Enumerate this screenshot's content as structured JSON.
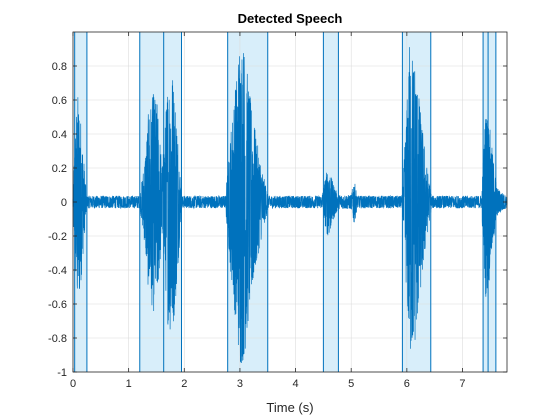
{
  "chart_data": {
    "type": "line",
    "title": "Detected Speech",
    "xlabel": "Time (s)",
    "ylabel": "",
    "xlim": [
      0,
      7.8
    ],
    "ylim": [
      -1,
      1
    ],
    "x_ticks": [
      0,
      1,
      2,
      3,
      4,
      5,
      6,
      7
    ],
    "x_tick_labels": [
      "0",
      "1",
      "2",
      "3",
      "4",
      "5",
      "6",
      "7"
    ],
    "y_ticks": [
      -1,
      -0.8,
      -0.6,
      -0.4,
      -0.2,
      0,
      0.2,
      0.4,
      0.6,
      0.8
    ],
    "y_tick_labels": [
      "-1",
      "-0.8",
      "-0.6",
      "-0.4",
      "-0.2",
      "0",
      "0.2",
      "0.4",
      "0.6",
      "0.8"
    ],
    "grid": true,
    "legend": "none",
    "colors": {
      "signal": "#0072BD",
      "region_fill": "#D8EEFA",
      "region_edge": "#0072BD",
      "grid": "#DCDCDC",
      "axes": "#262626"
    },
    "series": [
      {
        "envelope": [
          [
            0.0,
            0.02
          ],
          [
            0.03,
            0.35
          ],
          [
            0.08,
            0.62
          ],
          [
            0.12,
            0.55
          ],
          [
            0.18,
            0.3
          ],
          [
            0.24,
            0.05
          ],
          [
            1.2,
            0.03
          ],
          [
            1.28,
            0.22
          ],
          [
            1.36,
            0.52
          ],
          [
            1.45,
            0.62
          ],
          [
            1.52,
            0.55
          ],
          [
            1.6,
            0.2
          ],
          [
            1.64,
            0.35
          ],
          [
            1.7,
            0.68
          ],
          [
            1.78,
            0.78
          ],
          [
            1.86,
            0.5
          ],
          [
            1.94,
            0.1
          ],
          [
            2.75,
            0.08
          ],
          [
            2.85,
            0.45
          ],
          [
            2.95,
            0.75
          ],
          [
            3.0,
            0.95
          ],
          [
            3.08,
            0.88
          ],
          [
            3.18,
            0.6
          ],
          [
            3.3,
            0.35
          ],
          [
            3.42,
            0.15
          ],
          [
            3.5,
            0.05
          ],
          [
            4.48,
            0.05
          ],
          [
            4.56,
            0.18
          ],
          [
            4.6,
            0.2
          ],
          [
            4.66,
            0.12
          ],
          [
            4.76,
            0.04
          ],
          [
            5.0,
            0.04
          ],
          [
            5.05,
            0.13
          ],
          [
            5.1,
            0.05
          ],
          [
            5.92,
            0.05
          ],
          [
            6.0,
            0.55
          ],
          [
            6.05,
            0.9
          ],
          [
            6.15,
            0.8
          ],
          [
            6.25,
            0.5
          ],
          [
            6.36,
            0.2
          ],
          [
            6.44,
            0.04
          ],
          [
            7.35,
            0.1
          ],
          [
            7.42,
            0.55
          ],
          [
            7.48,
            0.45
          ],
          [
            7.55,
            0.25
          ],
          [
            7.62,
            0.08
          ],
          [
            7.8,
            0.03
          ]
        ],
        "noise_floor": 0.035
      }
    ],
    "regions": [
      [
        0.03,
        0.25
      ],
      [
        1.2,
        1.95
      ],
      [
        2.78,
        3.5
      ],
      [
        4.5,
        4.77
      ],
      [
        5.92,
        6.43
      ],
      [
        7.37,
        7.6
      ]
    ],
    "region_inner_lines": [
      1.63,
      7.46
    ]
  }
}
